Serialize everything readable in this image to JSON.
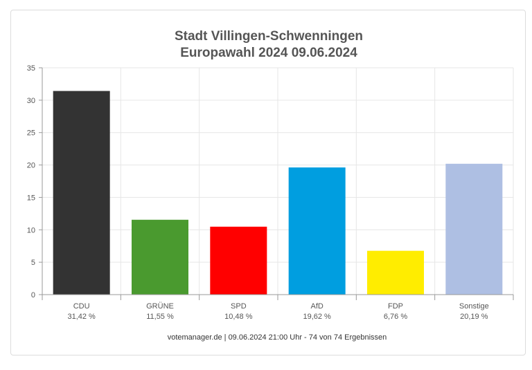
{
  "chart_data": {
    "type": "bar",
    "title": "Stadt Villingen-Schwenningen",
    "subtitle": "Europawahl 2024 09.06.2024",
    "categories": [
      "CDU",
      "GRÜNE",
      "SPD",
      "AfD",
      "FDP",
      "Sonstige"
    ],
    "value_labels": [
      "31,42 %",
      "11,55 %",
      "10,48 %",
      "19,62 %",
      "6,76 %",
      "20,19 %"
    ],
    "values": [
      31.42,
      11.55,
      10.48,
      19.62,
      6.76,
      20.19
    ],
    "colors": [
      "#333333",
      "#4a9a2f",
      "#ff0000",
      "#009ee0",
      "#ffed00",
      "#aebfe3"
    ],
    "ylim": [
      0,
      35
    ],
    "yticks": [
      "0",
      "5",
      "10",
      "15",
      "20",
      "25",
      "30",
      "35"
    ],
    "ytick_values": [
      0,
      5,
      10,
      15,
      20,
      25,
      30,
      35
    ],
    "grid": true,
    "xlabel": "",
    "ylabel": ""
  },
  "footer": "votemanager.de | 09.06.2024 21:00 Uhr - 74 von 74 Ergebnissen"
}
